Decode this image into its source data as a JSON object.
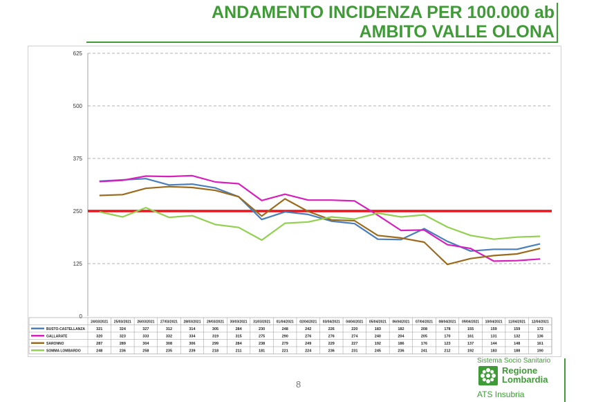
{
  "header": {
    "title_line1": "ANDAMENTO INCIDENZA PER 100.000 ab",
    "title_line2": "AMBITO VALLE OLONA"
  },
  "page_number": "8",
  "logo": {
    "system": "Sistema Socio Sanitario",
    "region_line1": "Regione",
    "region_line2": "Lombardia",
    "agency": "ATS Insubria"
  },
  "colors": {
    "threshold": "#e8141b",
    "grid": "#999999",
    "title": "#3e9b35"
  },
  "chart_data": {
    "type": "line",
    "title": "",
    "xlabel": "",
    "ylabel": "",
    "ylim": [
      0,
      625
    ],
    "yticks": [
      0,
      125,
      250,
      375,
      500,
      625
    ],
    "grid": "horizontal-dashed",
    "legend": "table-below",
    "threshold": 250,
    "categories": [
      "24/03/2021",
      "25/03/2021",
      "26/03/2021",
      "27/03/2021",
      "28/03/2021",
      "29/03/2021",
      "30/03/2021",
      "31/03/2021",
      "01/04/2021",
      "02/04/2021",
      "03/04/2021",
      "04/04/2021",
      "05/04/2021",
      "06/04/2021",
      "07/04/2021",
      "08/04/2021",
      "09/04/2021",
      "10/04/2021",
      "11/04/2021",
      "12/04/2021"
    ],
    "series": [
      {
        "name": "BUSTO-CASTELLANZA",
        "color": "#4a7ebb",
        "values": [
          321,
          324,
          327,
          312,
          314,
          305,
          284,
          230,
          248,
          242,
          226,
          220,
          183,
          182,
          208,
          178,
          155,
          159,
          159,
          172
        ]
      },
      {
        "name": "GALLARATE",
        "color": "#d61fbd",
        "values": [
          320,
          323,
          333,
          332,
          334,
          319,
          315,
          275,
          290,
          276,
          276,
          274,
          240,
          204,
          205,
          170,
          161,
          131,
          132,
          136
        ]
      },
      {
        "name": "SARONNO",
        "color": "#9c6a1c",
        "values": [
          287,
          289,
          304,
          308,
          306,
          299,
          284,
          238,
          279,
          249,
          229,
          227,
          192,
          186,
          176,
          123,
          137,
          144,
          148,
          161
        ]
      },
      {
        "name": "SOMMA LOMBARDO",
        "color": "#92d050",
        "values": [
          248,
          236,
          258,
          235,
          239,
          218,
          211,
          181,
          221,
          224,
          236,
          231,
          245,
          236,
          241,
          212,
          192,
          183,
          188,
          190
        ]
      }
    ]
  }
}
